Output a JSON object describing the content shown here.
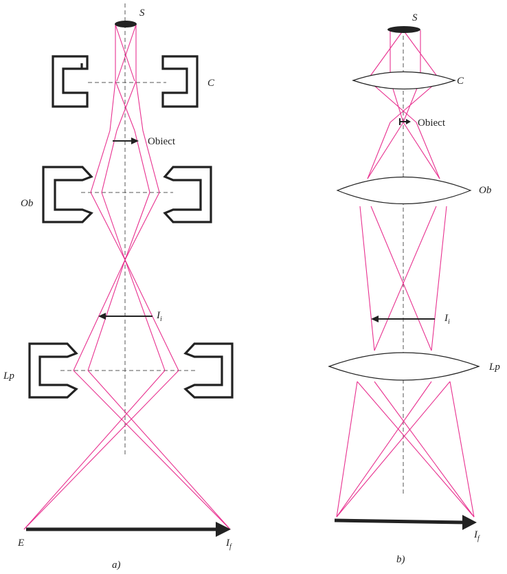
{
  "panels": [
    {
      "id": "a",
      "caption": "a)",
      "labels": {
        "source": "S",
        "condenser": "C",
        "object": "Obiect",
        "objective": "Ob",
        "intermediate_image": "I",
        "intermediate_image_sub": "i",
        "projector": "Lp",
        "screen": "E",
        "final_image": "I",
        "final_image_sub": "f"
      }
    },
    {
      "id": "b",
      "caption": "b)",
      "labels": {
        "source": "S",
        "condenser": "C",
        "object": "Obiect",
        "objective": "Ob",
        "intermediate_image": "I",
        "intermediate_image_sub": "i",
        "projector": "Lp",
        "final_image": "I",
        "final_image_sub": "f"
      }
    }
  ],
  "colors": {
    "ray": "#e8308f",
    "ink": "#222222",
    "axis": "#555555"
  }
}
